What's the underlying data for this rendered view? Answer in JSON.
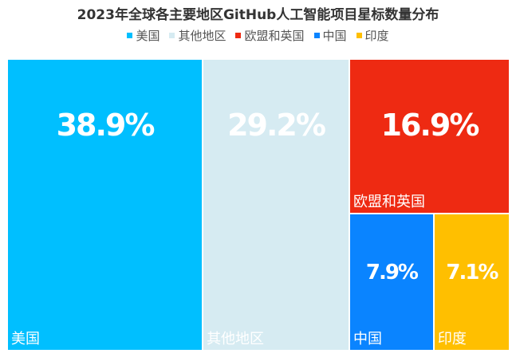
{
  "chart_data": {
    "type": "treemap",
    "title": "2023年全球各主要地区GitHub人工智能项目星标数量分布",
    "series": [
      {
        "name": "美国",
        "value": 38.9,
        "value_label": "38.9%",
        "color": "#00BFFF"
      },
      {
        "name": "其他地区",
        "value": 29.2,
        "value_label": "29.2%",
        "color": "#D6EBF2"
      },
      {
        "name": "欧盟和英国",
        "value": 16.9,
        "value_label": "16.9%",
        "color": "#EE2A12"
      },
      {
        "name": "中国",
        "value": 7.9,
        "value_label": "7.9%",
        "color": "#0A84FF"
      },
      {
        "name": "印度",
        "value": 7.1,
        "value_label": "7.1%",
        "color": "#FFBF00"
      }
    ],
    "legend_position": "top"
  }
}
